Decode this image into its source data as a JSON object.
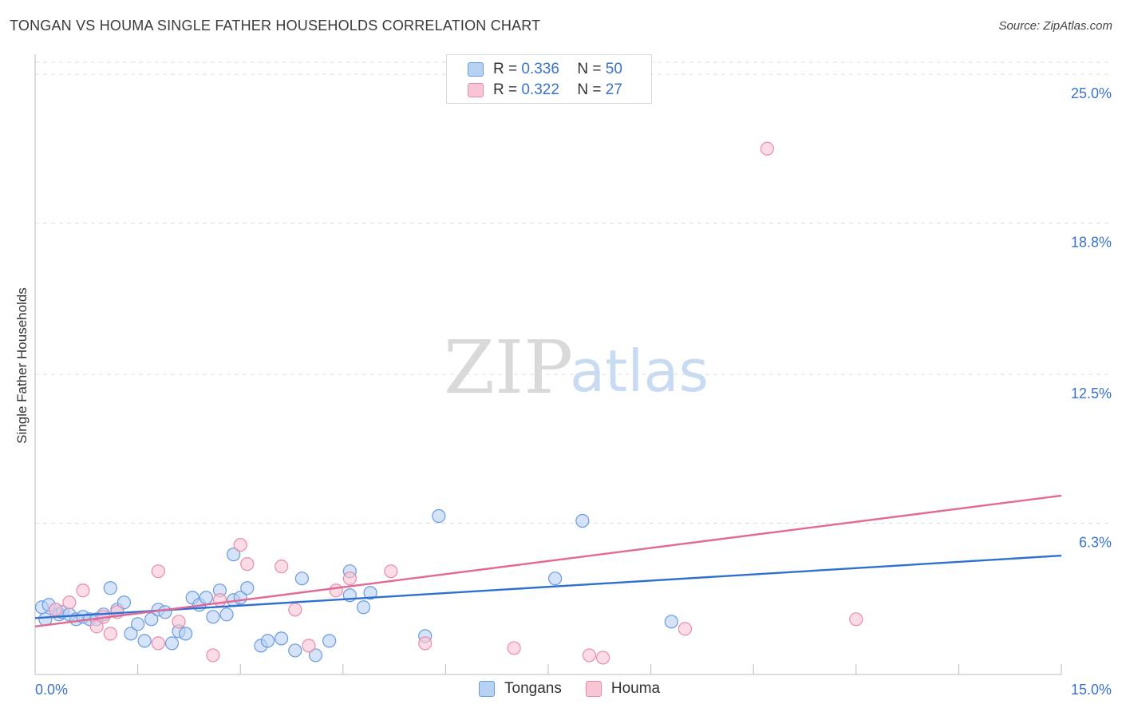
{
  "title": "TONGAN VS HOUMA SINGLE FATHER HOUSEHOLDS CORRELATION CHART",
  "source": "Source: ZipAtlas.com",
  "watermark": {
    "zip": "ZIP",
    "atlas": "atlas"
  },
  "legend": {
    "r_label": "R =",
    "n_label": "N =",
    "entries": [
      {
        "r": "0.336",
        "n": "50"
      },
      {
        "r": "0.322",
        "n": "27"
      }
    ]
  },
  "colors": {
    "tongans_fill": "#b7d1f3",
    "tongans_stroke": "#6a9bdc",
    "tongans_line": "#2f6fd0",
    "houma_fill": "#f8c5d5",
    "houma_stroke": "#e98aa9",
    "houma_line": "#e06a95",
    "grid": "#dddddd",
    "tick_label": "#3a73c9"
  },
  "chart_data": {
    "type": "scatter",
    "title": "TONGAN VS HOUMA SINGLE FATHER HOUSEHOLDS CORRELATION CHART",
    "xlabel": "",
    "ylabel": "Single Father Households",
    "xlim": [
      0,
      15
    ],
    "ylim": [
      0,
      25.5
    ],
    "x_tick_labels": [
      {
        "value": 0,
        "label": "0.0%"
      },
      {
        "value": 15,
        "label": "15.0%"
      }
    ],
    "y_tick_labels": [
      {
        "value": 6.3,
        "label": "6.3%"
      },
      {
        "value": 12.5,
        "label": "12.5%"
      },
      {
        "value": 18.8,
        "label": "18.8%"
      },
      {
        "value": 25.0,
        "label": "25.0%"
      }
    ],
    "series": [
      {
        "name": "Tongans",
        "r": 0.336,
        "n": 50,
        "trend": {
          "x": [
            0,
            15
          ],
          "y": [
            2.35,
            4.95
          ]
        },
        "points": [
          [
            0.1,
            2.8
          ],
          [
            0.15,
            2.3
          ],
          [
            0.2,
            2.9
          ],
          [
            0.3,
            2.7
          ],
          [
            0.35,
            2.5
          ],
          [
            0.4,
            2.6
          ],
          [
            0.5,
            2.5
          ],
          [
            0.6,
            2.3
          ],
          [
            0.7,
            2.4
          ],
          [
            0.8,
            2.3
          ],
          [
            0.9,
            2.3
          ],
          [
            1.0,
            2.5
          ],
          [
            1.1,
            3.6
          ],
          [
            1.2,
            2.7
          ],
          [
            1.3,
            3.0
          ],
          [
            1.4,
            1.7
          ],
          [
            1.5,
            2.1
          ],
          [
            1.6,
            1.4
          ],
          [
            1.7,
            2.3
          ],
          [
            1.8,
            2.7
          ],
          [
            1.9,
            2.6
          ],
          [
            2.0,
            1.3
          ],
          [
            2.1,
            1.8
          ],
          [
            2.2,
            1.7
          ],
          [
            2.3,
            3.2
          ],
          [
            2.4,
            2.9
          ],
          [
            2.5,
            3.2
          ],
          [
            2.6,
            2.4
          ],
          [
            2.9,
            5.0
          ],
          [
            2.9,
            3.1
          ],
          [
            2.7,
            3.5
          ],
          [
            2.8,
            2.5
          ],
          [
            3.0,
            3.2
          ],
          [
            3.1,
            3.6
          ],
          [
            3.3,
            1.2
          ],
          [
            3.4,
            1.4
          ],
          [
            3.6,
            1.5
          ],
          [
            3.8,
            1.0
          ],
          [
            3.9,
            4.0
          ],
          [
            4.1,
            0.8
          ],
          [
            4.3,
            1.4
          ],
          [
            4.6,
            3.3
          ],
          [
            4.6,
            4.3
          ],
          [
            4.8,
            2.8
          ],
          [
            4.9,
            3.4
          ],
          [
            5.7,
            1.6
          ],
          [
            5.9,
            6.6
          ],
          [
            7.6,
            4.0
          ],
          [
            8.0,
            6.4
          ],
          [
            9.3,
            2.2
          ]
        ]
      },
      {
        "name": "Houma",
        "r": 0.322,
        "n": 27,
        "trend": {
          "x": [
            0,
            15
          ],
          "y": [
            2.0,
            7.45
          ]
        },
        "points": [
          [
            0.3,
            2.7
          ],
          [
            0.5,
            3.0
          ],
          [
            0.7,
            3.5
          ],
          [
            0.9,
            2.0
          ],
          [
            1.0,
            2.4
          ],
          [
            1.1,
            1.7
          ],
          [
            1.2,
            2.6
          ],
          [
            1.8,
            4.3
          ],
          [
            1.8,
            1.3
          ],
          [
            2.1,
            2.2
          ],
          [
            2.6,
            0.8
          ],
          [
            2.7,
            3.1
          ],
          [
            3.0,
            5.4
          ],
          [
            3.1,
            4.6
          ],
          [
            3.6,
            4.5
          ],
          [
            3.8,
            2.7
          ],
          [
            4.0,
            1.2
          ],
          [
            4.4,
            3.5
          ],
          [
            4.6,
            4.0
          ],
          [
            5.2,
            4.3
          ],
          [
            5.7,
            1.3
          ],
          [
            7.0,
            1.1
          ],
          [
            8.1,
            0.8
          ],
          [
            9.5,
            1.9
          ],
          [
            10.7,
            21.9
          ],
          [
            12.0,
            2.3
          ],
          [
            8.3,
            0.7
          ]
        ]
      }
    ]
  }
}
